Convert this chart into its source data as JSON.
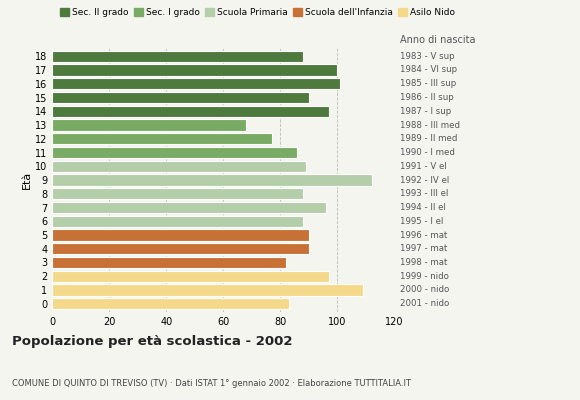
{
  "ages": [
    18,
    17,
    16,
    15,
    14,
    13,
    12,
    11,
    10,
    9,
    8,
    7,
    6,
    5,
    4,
    3,
    2,
    1,
    0
  ],
  "values": [
    88,
    100,
    101,
    90,
    97,
    68,
    77,
    86,
    89,
    112,
    88,
    96,
    88,
    90,
    90,
    82,
    97,
    109,
    83
  ],
  "right_labels": [
    "1983 - V sup",
    "1984 - VI sup",
    "1985 - III sup",
    "1986 - II sup",
    "1987 - I sup",
    "1988 - III med",
    "1989 - II med",
    "1990 - I med",
    "1991 - V el",
    "1992 - IV el",
    "1993 - III el",
    "1994 - II el",
    "1995 - I el",
    "1996 - mat",
    "1997 - mat",
    "1998 - mat",
    "1999 - nido",
    "2000 - nido",
    "2001 - nido"
  ],
  "colors": [
    "#4e7a3e",
    "#4e7a3e",
    "#4e7a3e",
    "#4e7a3e",
    "#4e7a3e",
    "#7aab64",
    "#7aab64",
    "#7aab64",
    "#b5ceaa",
    "#b5ceaa",
    "#b5ceaa",
    "#b5ceaa",
    "#b5ceaa",
    "#c87137",
    "#c87137",
    "#c87137",
    "#f5d98a",
    "#f5d98a",
    "#f5d98a"
  ],
  "legend_labels": [
    "Sec. II grado",
    "Sec. I grado",
    "Scuola Primaria",
    "Scuola dell'Infanzia",
    "Asilo Nido"
  ],
  "legend_colors": [
    "#4e7a3e",
    "#7aab64",
    "#b5ceaa",
    "#c87137",
    "#f5d98a"
  ],
  "title": "Popolazione per età scolastica - 2002",
  "subtitle": "COMUNE DI QUINTO DI TREVISO (TV) · Dati ISTAT 1° gennaio 2002 · Elaborazione TUTTITALIA.IT",
  "ylabel": "Età",
  "anno_nascita": "Anno di nascita",
  "xlim": [
    0,
    120
  ],
  "xticks": [
    0,
    20,
    40,
    60,
    80,
    100,
    120
  ],
  "background_color": "#f5f5f0",
  "grid_color": "#bbbbbb"
}
